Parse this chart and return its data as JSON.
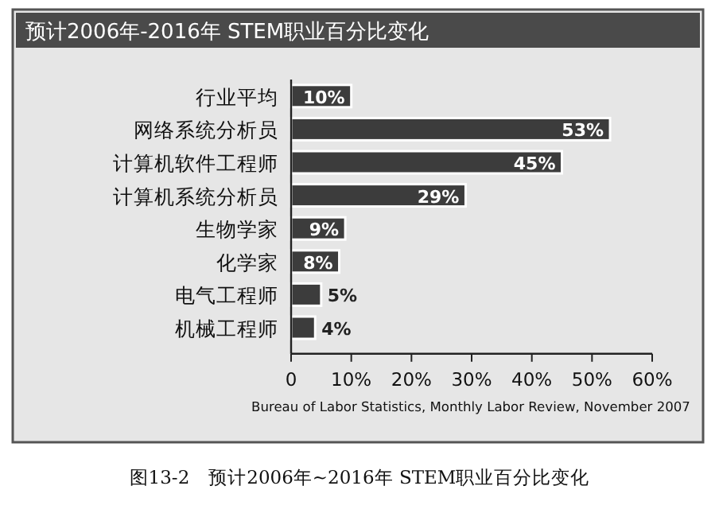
{
  "chart_data": {
    "type": "bar",
    "orientation": "horizontal",
    "title": "预计2006年-2016年 STEM职业百分比变化",
    "categories": [
      "行业平均",
      "网络系统分析员",
      "计算机软件工程师",
      "计算机系统分析员",
      "生物学家",
      "化学家",
      "电气工程师",
      "机械工程师"
    ],
    "values": [
      10,
      53,
      45,
      29,
      9,
      8,
      5,
      4
    ],
    "value_labels": [
      "10%",
      "53%",
      "45%",
      "29%",
      "9%",
      "8%",
      "5%",
      "4%"
    ],
    "color": "#3c3c3c",
    "xlim": [
      0,
      60
    ],
    "xticks": [
      {
        "value": 0,
        "label": "0"
      },
      {
        "value": 10,
        "label": "10%"
      },
      {
        "value": 20,
        "label": "20%"
      },
      {
        "value": 30,
        "label": "30%"
      },
      {
        "value": 40,
        "label": "40%"
      },
      {
        "value": 50,
        "label": "50%"
      },
      {
        "value": 60,
        "label": "60%"
      }
    ],
    "annotations": [
      "Bureau of Labor Statistics, Monthly Labor Review, November 2007",
      "图13-2　预计2006年~2016年 STEM职业百分比变化"
    ]
  }
}
